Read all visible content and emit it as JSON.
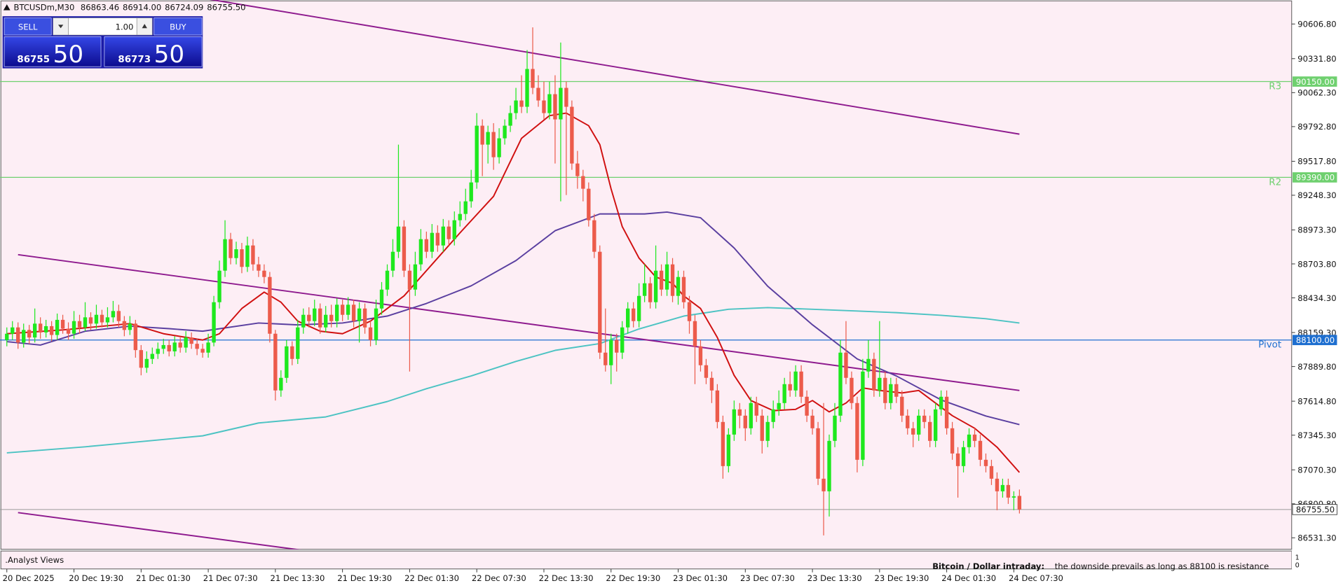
{
  "header": {
    "symbol": "BTCUSDm,M30",
    "ohlc": [
      "86863.46",
      "86914.00",
      "86724.09",
      "86755.50"
    ]
  },
  "trade_panel": {
    "sell_label": "SELL",
    "buy_label": "BUY",
    "volume": "1.00",
    "sell_price_main": "86755",
    "sell_price_big": "50",
    "buy_price_main": "86773",
    "buy_price_big": "50"
  },
  "analyst": {
    "panel_title": ".Analyst Views",
    "headline": "Bitcoin / Dollar intraday:",
    "text": "the downside prevails as long as 88100 is resistance",
    "scale_labels": [
      "1",
      "0"
    ]
  },
  "chart_data": {
    "type": "candlestick",
    "up_color": "#1ee81e",
    "down_color": "#ec5b4b",
    "ylim": [
      86440,
      90797
    ],
    "yticks": [
      {
        "value": 90606.8,
        "label": "90606.80"
      },
      {
        "value": 90331.8,
        "label": "90331.80"
      },
      {
        "value": 90062.3,
        "label": "90062.30"
      },
      {
        "value": 89792.8,
        "label": "89792.80"
      },
      {
        "value": 89517.8,
        "label": "89517.80"
      },
      {
        "value": 89248.3,
        "label": "89248.30"
      },
      {
        "value": 88973.3,
        "label": "88973.30"
      },
      {
        "value": 88703.8,
        "label": "88703.80"
      },
      {
        "value": 88434.3,
        "label": "88434.30"
      },
      {
        "value": 88159.3,
        "label": "88159.30"
      },
      {
        "value": 87889.8,
        "label": "87889.80"
      },
      {
        "value": 87614.8,
        "label": "87614.80"
      },
      {
        "value": 87345.3,
        "label": "87345.30"
      },
      {
        "value": 87070.3,
        "label": "87070.30"
      },
      {
        "value": 86800.8,
        "label": "86800.80"
      },
      {
        "value": 86531.3,
        "label": "86531.30"
      }
    ],
    "categories": [
      "20 Dec 2025",
      null,
      null,
      null,
      null,
      null,
      null,
      null,
      null,
      null,
      null,
      null,
      "20 Dec 19:30",
      null,
      null,
      null,
      null,
      null,
      null,
      null,
      null,
      null,
      null,
      null,
      "21 Dec 01:30",
      null,
      null,
      null,
      null,
      null,
      null,
      null,
      null,
      null,
      null,
      null,
      "21 Dec 07:30",
      null,
      null,
      null,
      null,
      null,
      null,
      null,
      null,
      null,
      null,
      null,
      "21 Dec 13:30",
      null,
      null,
      null,
      null,
      null,
      null,
      null,
      null,
      null,
      null,
      null,
      "21 Dec 19:30",
      null,
      null,
      null,
      null,
      null,
      null,
      null,
      null,
      null,
      null,
      null,
      "22 Dec 01:30",
      null,
      null,
      null,
      null,
      null,
      null,
      null,
      null,
      null,
      null,
      null,
      "22 Dec 07:30",
      null,
      null,
      null,
      null,
      null,
      null,
      null,
      null,
      null,
      null,
      null,
      "22 Dec 13:30",
      null,
      null,
      null,
      null,
      null,
      null,
      null,
      null,
      null,
      null,
      null,
      "22 Dec 19:30",
      null,
      null,
      null,
      null,
      null,
      null,
      null,
      null,
      null,
      null,
      null,
      "23 Dec 01:30",
      null,
      null,
      null,
      null,
      null,
      null,
      null,
      null,
      null,
      null,
      null,
      "23 Dec 07:30",
      null,
      null,
      null,
      null,
      null,
      null,
      null,
      null,
      null,
      null,
      null,
      "23 Dec 13:30",
      null,
      null,
      null,
      null,
      null,
      null,
      null,
      null,
      null,
      null,
      null,
      "23 Dec 19:30",
      null,
      null,
      null,
      null,
      null,
      null,
      null,
      null,
      null,
      null,
      null,
      "24 Dec 01:30",
      null,
      null,
      null,
      null,
      null,
      null,
      null,
      null,
      null,
      null,
      null,
      "24 Dec 07:30",
      null
    ],
    "open": [
      88100,
      88150,
      88200,
      88080,
      88180,
      88120,
      88230,
      88160,
      88210,
      88140,
      88260,
      88190,
      88150,
      88250,
      88200,
      88280,
      88230,
      88300,
      88240,
      88280,
      88330,
      88250,
      88180,
      88230,
      88020,
      87880,
      87950,
      87990,
      88030,
      88060,
      88010,
      88080,
      88040,
      88120,
      88070,
      88030,
      88000,
      88080,
      88400,
      88650,
      88900,
      88750,
      88820,
      88680,
      88850,
      88700,
      88650,
      88600,
      88150,
      87700,
      87800,
      88050,
      87950,
      88200,
      88300,
      88250,
      88350,
      88200,
      88300,
      88250,
      88380,
      88300,
      88380,
      88250,
      88350,
      88200,
      88100,
      88350,
      88500,
      88650,
      88800,
      89000,
      88650,
      88500,
      88700,
      88900,
      88800,
      88950,
      88850,
      89000,
      88900,
      89050,
      89100,
      89200,
      89350,
      89800,
      89650,
      89750,
      89550,
      89700,
      89800,
      89900,
      90000,
      89950,
      90250,
      90100,
      90000,
      89900,
      90050,
      89850,
      90100,
      89950,
      89500,
      89400,
      89300,
      89050,
      88800,
      88000,
      87900,
      88100,
      88000,
      88200,
      88350,
      88250,
      88450,
      88550,
      88400,
      88650,
      88500,
      88700,
      88450,
      88600,
      88400,
      88250,
      88050,
      87900,
      87800,
      87700,
      87450,
      87100,
      87350,
      87550,
      87500,
      87400,
      87600,
      87500,
      87300,
      87450,
      87550,
      87600,
      87750,
      87700,
      87850,
      87650,
      87500,
      87400,
      87000,
      86900,
      87300,
      87500,
      88000,
      87800,
      87600,
      87150,
      87850,
      87950,
      87700,
      87800,
      87600,
      87750,
      87650,
      87500,
      87400,
      87350,
      87500,
      87450,
      87300,
      87550,
      87650,
      87400,
      87200,
      87100,
      87250,
      87350,
      87300,
      87150,
      87100,
      87000,
      86900,
      86950,
      86850,
      86863.46
    ],
    "high": [
      88200,
      88250,
      88240,
      88230,
      88220,
      88350,
      88280,
      88260,
      88250,
      88310,
      88300,
      88240,
      88330,
      88300,
      88400,
      88320,
      88380,
      88340,
      88360,
      88410,
      88380,
      88290,
      88290,
      88260,
      88060,
      88010,
      88040,
      88080,
      88110,
      88100,
      88130,
      88120,
      88170,
      88160,
      88110,
      88070,
      88150,
      88450,
      88730,
      89050,
      88950,
      88880,
      88870,
      88920,
      88900,
      88760,
      88700,
      88640,
      88180,
      87860,
      88100,
      88090,
      88260,
      88350,
      88360,
      88420,
      88390,
      88370,
      88380,
      88430,
      88420,
      88440,
      88420,
      88400,
      88390,
      88250,
      88420,
      88560,
      88700,
      88900,
      89650,
      89050,
      88700,
      88800,
      88980,
      88960,
      89020,
      89010,
      89060,
      89050,
      89120,
      89200,
      89300,
      89450,
      89900,
      89850,
      89800,
      89820,
      89780,
      89850,
      89960,
      90100,
      90200,
      90400,
      90580,
      90200,
      90150,
      90150,
      90200,
      90460,
      90150,
      90000,
      89600,
      89450,
      89350,
      89100,
      88850,
      88350,
      88150,
      88150,
      88250,
      88400,
      88400,
      88550,
      88700,
      88600,
      88850,
      88700,
      88800,
      88750,
      88650,
      88650,
      88450,
      88300,
      88100,
      87950,
      87850,
      87750,
      87500,
      87400,
      87620,
      87600,
      87550,
      87650,
      87650,
      87550,
      87500,
      87620,
      87700,
      87800,
      87850,
      87900,
      87900,
      87700,
      87550,
      87450,
      87600,
      87350,
      87600,
      88100,
      88250,
      87850,
      87650,
      87950,
      88100,
      88000,
      88250,
      87850,
      87800,
      87800,
      87700,
      87550,
      87450,
      87550,
      87550,
      87500,
      87600,
      87700,
      87700,
      87450,
      87250,
      87300,
      87400,
      87400,
      87350,
      87200,
      87150,
      87050,
      87000,
      87000,
      86900,
      86914
    ],
    "low": [
      88050,
      88100,
      88030,
      88040,
      88070,
      88080,
      88110,
      88120,
      88090,
      88100,
      88150,
      88100,
      88110,
      88150,
      88170,
      88180,
      88190,
      88200,
      88200,
      88240,
      88200,
      88130,
      88140,
      87960,
      87820,
      87840,
      87910,
      87950,
      87990,
      87970,
      87970,
      88000,
      88000,
      88030,
      87980,
      87960,
      87960,
      88050,
      88350,
      88600,
      88700,
      88700,
      88630,
      88640,
      88650,
      88600,
      88550,
      88080,
      87620,
      87650,
      87760,
      87900,
      87910,
      88150,
      88200,
      88210,
      88150,
      88160,
      88200,
      88200,
      88250,
      88260,
      88200,
      88080,
      88150,
      88050,
      88060,
      88300,
      88450,
      88600,
      88750,
      88600,
      87850,
      88450,
      88650,
      88750,
      88750,
      88800,
      88800,
      88850,
      88850,
      89000,
      89050,
      89150,
      89300,
      89400,
      89500,
      89450,
      89500,
      89650,
      89750,
      89850,
      89900,
      89900,
      90050,
      89950,
      89850,
      89850,
      89500,
      89200,
      89250,
      89450,
      89300,
      89200,
      89000,
      88750,
      87950,
      87850,
      87750,
      87850,
      87950,
      88150,
      88200,
      88200,
      88400,
      88350,
      88350,
      88450,
      88450,
      88400,
      88380,
      88350,
      88150,
      87750,
      87850,
      87750,
      87600,
      87400,
      87000,
      87050,
      87300,
      87400,
      87300,
      87350,
      87450,
      87200,
      87250,
      87400,
      87500,
      87550,
      87650,
      87650,
      87600,
      87450,
      87350,
      86950,
      86550,
      86700,
      87250,
      87450,
      87750,
      87550,
      87050,
      87100,
      87800,
      87650,
      87650,
      87550,
      87550,
      87600,
      87450,
      87350,
      87250,
      87300,
      87400,
      87250,
      87250,
      87500,
      87350,
      87150,
      86850,
      87050,
      87200,
      87250,
      87100,
      87050,
      86950,
      86750,
      86850,
      86800,
      86750,
      86724.09
    ],
    "close": [
      88150,
      88200,
      88080,
      88180,
      88120,
      88230,
      88160,
      88210,
      88140,
      88260,
      88190,
      88150,
      88250,
      88200,
      88280,
      88230,
      88300,
      88240,
      88280,
      88330,
      88250,
      88180,
      88230,
      88020,
      87880,
      87950,
      87990,
      88030,
      88060,
      88010,
      88080,
      88040,
      88120,
      88070,
      88030,
      88000,
      88080,
      88400,
      88650,
      88900,
      88750,
      88820,
      88680,
      88850,
      88700,
      88650,
      88600,
      88150,
      87700,
      87800,
      88050,
      87950,
      88200,
      88300,
      88250,
      88350,
      88200,
      88300,
      88250,
      88380,
      88300,
      88380,
      88250,
      88350,
      88200,
      88100,
      88350,
      88500,
      88650,
      88800,
      89000,
      88650,
      88500,
      88700,
      88900,
      88800,
      88950,
      88850,
      89000,
      88900,
      89050,
      89100,
      89200,
      89350,
      89800,
      89650,
      89750,
      89550,
      89700,
      89800,
      89900,
      90000,
      89950,
      90250,
      90100,
      90000,
      89900,
      90050,
      89850,
      90100,
      89950,
      89500,
      89400,
      89300,
      89050,
      88800,
      88000,
      87900,
      88100,
      88000,
      88200,
      88350,
      88250,
      88450,
      88550,
      88400,
      88650,
      88500,
      88700,
      88450,
      88600,
      88400,
      88250,
      88050,
      87900,
      87800,
      87700,
      87450,
      87100,
      87350,
      87550,
      87500,
      87400,
      87600,
      87500,
      87300,
      87450,
      87550,
      87600,
      87750,
      87700,
      87850,
      87650,
      87500,
      87400,
      87000,
      86900,
      87300,
      87500,
      88000,
      87800,
      87600,
      87150,
      87850,
      87950,
      87700,
      87800,
      87600,
      87750,
      87650,
      87500,
      87400,
      87350,
      87500,
      87450,
      87300,
      87550,
      87650,
      87400,
      87200,
      87100,
      87250,
      87350,
      87300,
      87150,
      87100,
      87000,
      86900,
      86950,
      86850,
      86860,
      86755.5
    ],
    "indicators": [
      {
        "color": "#4cc3c3",
        "x": [
          0,
          14,
          35,
          45,
          57,
          68,
          75,
          83,
          91,
          98,
          106,
          113,
          121,
          129,
          136,
          144,
          152,
          159,
          167,
          175,
          181
        ],
        "values": [
          87205,
          87253,
          87340,
          87442,
          87490,
          87612,
          87714,
          87815,
          87930,
          88018,
          88072,
          88188,
          88290,
          88344,
          88357,
          88344,
          88330,
          88317,
          88296,
          88269,
          88235
        ]
      },
      {
        "color": "#5a3fa0",
        "x": [
          0,
          6,
          14,
          22,
          29,
          35,
          45,
          52,
          60,
          68,
          75,
          83,
          91,
          98,
          106,
          114,
          118,
          124,
          130,
          136,
          144,
          152,
          159,
          167,
          175,
          181
        ],
        "values": [
          88087,
          88060,
          88170,
          88210,
          88190,
          88170,
          88235,
          88220,
          88235,
          88290,
          88390,
          88530,
          88730,
          88967,
          89100,
          89100,
          89115,
          89070,
          88830,
          88527,
          88221,
          87950,
          87815,
          87625,
          87497,
          87429
        ]
      },
      {
        "color": "#d01010",
        "x": [
          0,
          10,
          22,
          28,
          35,
          38,
          42,
          46,
          49,
          52,
          56,
          60,
          65,
          71,
          76,
          81,
          87,
          92,
          97,
          100,
          104,
          106,
          108,
          110,
          113,
          116,
          119,
          121,
          124,
          127,
          130,
          133,
          137,
          141,
          144,
          147,
          150,
          153,
          156,
          160,
          163,
          166,
          169,
          173,
          177,
          181
        ],
        "values": [
          88150,
          88180,
          88230,
          88150,
          88100,
          88150,
          88350,
          88480,
          88400,
          88250,
          88170,
          88150,
          88250,
          88450,
          88700,
          88950,
          89240,
          89700,
          89880,
          89900,
          89800,
          89650,
          89300,
          89000,
          88750,
          88600,
          88550,
          88450,
          88350,
          88120,
          87820,
          87620,
          87540,
          87550,
          87620,
          87530,
          87600,
          87720,
          87700,
          87680,
          87700,
          87600,
          87500,
          87400,
          87250,
          87050
        ]
      }
    ],
    "trendlines": [
      {
        "color": "#8e1a8e",
        "x": [
          0,
          181
        ],
        "values": [
          91070,
          89733
        ]
      },
      {
        "color": "#8e1a8e",
        "x": [
          2,
          181
        ],
        "values": [
          88777,
          87700
        ]
      },
      {
        "color": "#8e1a8e",
        "x": [
          2,
          55
        ],
        "values": [
          86731,
          86420
        ]
      }
    ],
    "levels": [
      {
        "label": "R3",
        "value": 90150,
        "value_label": "90150.00",
        "color": "#6fd06f"
      },
      {
        "label": "R2",
        "value": 89390,
        "value_label": "89390.00",
        "color": "#6fd06f"
      },
      {
        "label": "Pivot",
        "value": 88100,
        "value_label": "88100.00",
        "color": "#1e6fd0"
      }
    ],
    "last_price": {
      "value": 86755.5,
      "value_label": "86755.50",
      "color": "#9a9a9a"
    }
  }
}
